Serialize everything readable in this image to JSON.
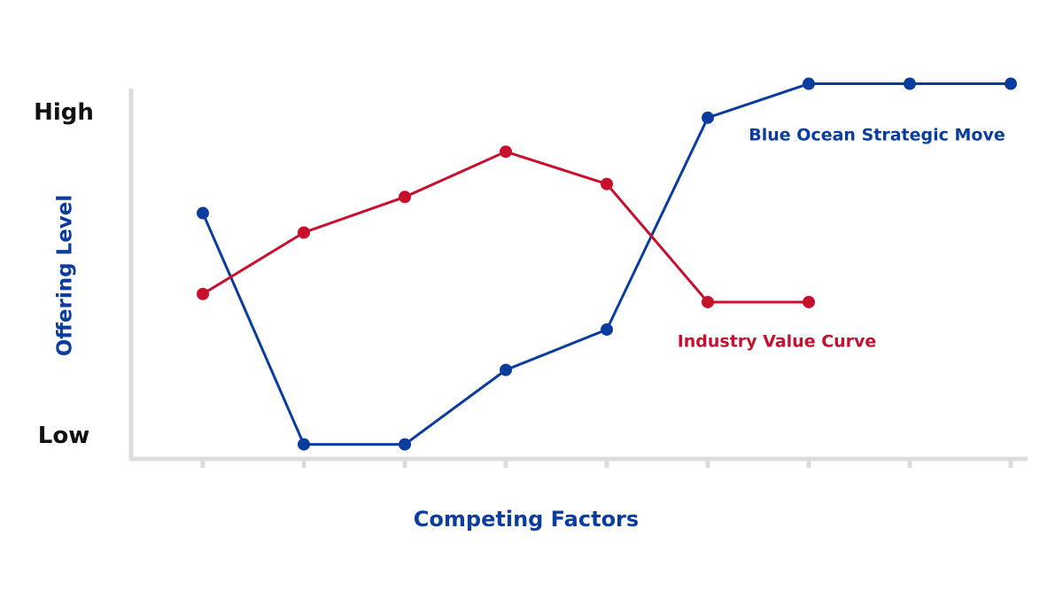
{
  "chart_data": {
    "type": "line",
    "x_label": "Competing Factors",
    "y_label": "Offering Level",
    "categories": [
      null,
      null,
      null,
      null,
      null,
      null,
      null,
      null,
      null
    ],
    "ylim": [
      -0.7,
      10.75
    ],
    "yticks": [
      {
        "value": 0,
        "label": "Low"
      },
      {
        "value": 10,
        "label": "High"
      }
    ],
    "series": [
      {
        "name": "Blue Ocean Strategic Move",
        "color": "#0b3d9e",
        "values": [
          6.9,
          -0.25,
          -0.25,
          2.05,
          3.3,
          9.85,
          10.9,
          10.9,
          10.9
        ]
      },
      {
        "name": "Industry Value Curve",
        "color": "#c8102e",
        "values": [
          4.4,
          6.3,
          7.4,
          8.8,
          7.8,
          4.15,
          4.15,
          null,
          null
        ]
      }
    ]
  }
}
